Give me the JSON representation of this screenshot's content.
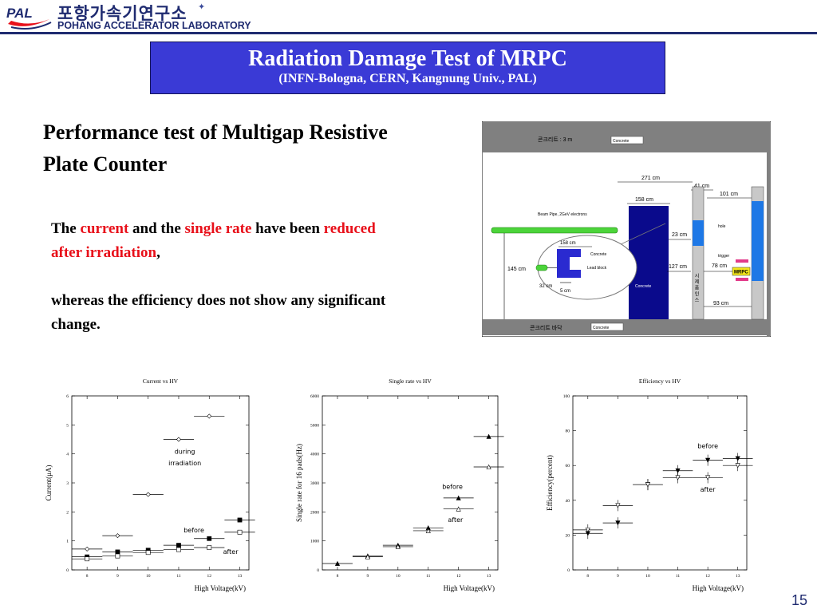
{
  "header": {
    "logo_text": "PAL",
    "korean_name": "포항가속기연구소",
    "lab_name": "POHANG ACCELERATOR LABORATORY"
  },
  "title": {
    "main": "Radiation Damage Test of MRPC",
    "sub": "(INFN-Bologna, CERN, Kangnung Univ., PAL)"
  },
  "section_heading": "Performance test of Multigap Resistive Plate Counter",
  "body": {
    "p1": {
      "t1": "The ",
      "current": "current",
      "t2": " and the ",
      "single_rate": "single rate",
      "t3": " have been ",
      "reduced": "reduced after irradiation",
      "t4": ","
    },
    "p2": "whereas the efficiency does not show any significant change."
  },
  "diagram": {
    "concrete_top": "콘크리트 : 3 m",
    "concrete_bottom": "콘크리트 바닥",
    "concrete_label": "Concrete",
    "dim_271": "271 cm",
    "dim_41": "41 cm",
    "dim_101": "101 cm",
    "dim_158_top": "158 cm",
    "dim_158_inset": "158 cm",
    "dim_23": "23 cm",
    "dim_127": "127 cm",
    "dim_145": "145 cm",
    "dim_78": "78 cm",
    "dim_93": "93 cm",
    "dim_32": "32 cm",
    "dim_5": "5 cm",
    "beam_pipe": "Beam Pipe, 2GeV electrons",
    "lead_block": "Lead block",
    "hole": "hole",
    "trigger": "trigger",
    "mrpc": "MRPC",
    "wall_label": "시 제 품 인 스"
  },
  "colors": {
    "title_bg": "#3a3ad6",
    "header_blue": "#1f2b70",
    "emphasis_red": "#e8101a",
    "concrete_gray": "#808080",
    "block_navy": "#0a0a8c",
    "beam_green": "#4cd43a",
    "hole_blue": "#1e78e6"
  },
  "chart_data": [
    {
      "type": "scatter",
      "title": "Current vs HV",
      "xlabel": "High Voltage(kV)",
      "ylabel": "Current(μA)",
      "xlim": [
        7.5,
        13.3
      ],
      "ylim": [
        0,
        6
      ],
      "xticks": [
        8,
        9,
        10,
        11,
        12,
        13
      ],
      "yticks": [
        0,
        1,
        2,
        3,
        4,
        5,
        6
      ],
      "xerr": 0.5,
      "series": [
        {
          "name": "during irradiation",
          "marker": "diamond-open",
          "x": [
            8,
            9,
            10,
            11,
            12
          ],
          "y": [
            0.72,
            1.18,
            2.6,
            4.5,
            5.3
          ]
        },
        {
          "name": "before",
          "marker": "square-filled",
          "x": [
            8,
            9,
            10,
            11,
            12,
            13
          ],
          "y": [
            0.45,
            0.62,
            0.68,
            0.85,
            1.08,
            1.72
          ]
        },
        {
          "name": "after",
          "marker": "square-open",
          "x": [
            8,
            9,
            10,
            11,
            12,
            13
          ],
          "y": [
            0.38,
            0.48,
            0.6,
            0.7,
            0.77,
            1.3
          ]
        }
      ],
      "annotations": [
        {
          "text": "during",
          "x": 11.2,
          "y": 4.0
        },
        {
          "text": "irradiation",
          "x": 11.2,
          "y": 3.6
        },
        {
          "text": "before",
          "x": 11.5,
          "y": 1.3
        },
        {
          "text": "after",
          "x": 12.7,
          "y": 0.55
        }
      ]
    },
    {
      "type": "scatter",
      "title": "Single rate vs HV",
      "xlabel": "High Voltage(kV)",
      "ylabel": "Single rate for 16 pads(Hz)",
      "xlim": [
        7.5,
        13.3
      ],
      "ylim": [
        0,
        6000
      ],
      "xticks": [
        8,
        9,
        10,
        11,
        12,
        13
      ],
      "yticks": [
        0,
        1000,
        2000,
        3000,
        4000,
        5000,
        6000
      ],
      "xerr": 0.5,
      "series": [
        {
          "name": "before",
          "marker": "triangle-filled",
          "x": [
            8,
            9,
            10,
            11,
            12,
            13
          ],
          "y": [
            220,
            480,
            850,
            1450,
            2480,
            4600
          ]
        },
        {
          "name": "after",
          "marker": "triangle-open",
          "x": [
            9,
            10,
            11,
            12,
            13
          ],
          "y": [
            450,
            800,
            1350,
            2100,
            3550
          ]
        }
      ],
      "annotations": [
        {
          "text": "before",
          "x": 11.8,
          "y": 2800
        },
        {
          "text": "after",
          "x": 11.9,
          "y": 1650
        }
      ]
    },
    {
      "type": "scatter",
      "title": "Efficiency vs HV",
      "xlabel": "High Voltage(kV)",
      "ylabel": "Efficiency(percent)",
      "xlim": [
        7.5,
        13.3
      ],
      "ylim": [
        0,
        100
      ],
      "xticks": [
        8,
        9,
        10,
        11,
        12,
        13
      ],
      "yticks": [
        0,
        20,
        40,
        60,
        80,
        100
      ],
      "xerr": 0.5,
      "series": [
        {
          "name": "before",
          "marker": "triangle-down-filled",
          "x": [
            8,
            9,
            10,
            11,
            12,
            13
          ],
          "y": [
            21,
            27,
            49,
            57,
            63,
            64
          ]
        },
        {
          "name": "after",
          "marker": "triangle-down-open",
          "x": [
            8,
            9,
            10,
            11,
            12,
            13
          ],
          "y": [
            23,
            37,
            49,
            53,
            53,
            60
          ]
        }
      ],
      "annotations": [
        {
          "text": "before",
          "x": 12.0,
          "y": 70
        },
        {
          "text": "after",
          "x": 12.0,
          "y": 45
        }
      ]
    }
  ],
  "page_number": "15"
}
